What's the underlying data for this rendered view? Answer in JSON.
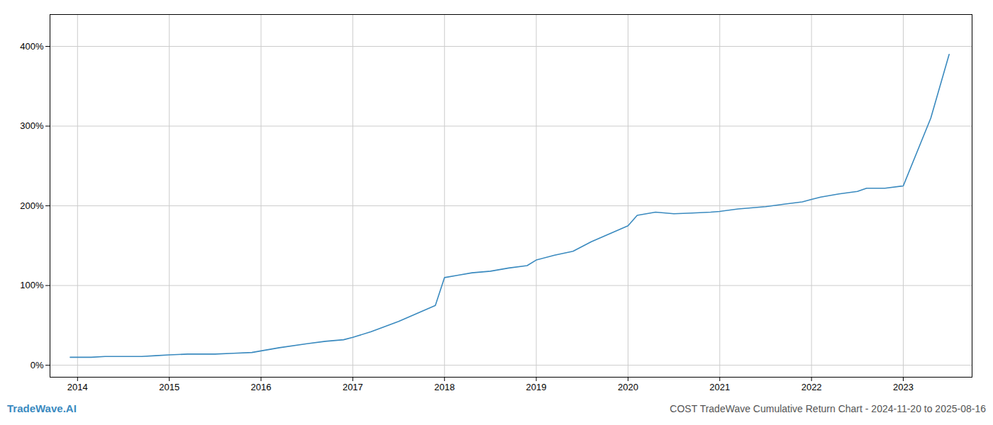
{
  "chart_data": {
    "type": "line",
    "title": "COST TradeWave Cumulative Return Chart - 2024-11-20 to 2025-08-16",
    "annotations": [
      "TradeWave.AI"
    ],
    "color": "#3a8abf",
    "grid": true,
    "x": [
      2013.92,
      2014.0,
      2014.15,
      2014.3,
      2014.5,
      2014.7,
      2014.85,
      2015.0,
      2015.2,
      2015.5,
      2015.7,
      2015.9,
      2016.0,
      2016.2,
      2016.5,
      2016.7,
      2016.9,
      2017.0,
      2017.2,
      2017.5,
      2017.7,
      2017.9,
      2018.0,
      2018.15,
      2018.3,
      2018.5,
      2018.7,
      2018.9,
      2019.0,
      2019.2,
      2019.4,
      2019.6,
      2019.8,
      2020.0,
      2020.1,
      2020.3,
      2020.5,
      2020.7,
      2020.9,
      2021.0,
      2021.2,
      2021.5,
      2021.7,
      2021.9,
      2022.0,
      2022.1,
      2022.3,
      2022.5,
      2022.6,
      2022.8,
      2023.0,
      2023.3,
      2023.5
    ],
    "values": [
      10,
      10,
      10,
      11,
      11,
      11,
      12,
      13,
      14,
      14,
      15,
      16,
      18,
      22,
      27,
      30,
      32,
      35,
      42,
      55,
      65,
      75,
      110,
      113,
      116,
      118,
      122,
      125,
      132,
      138,
      143,
      155,
      165,
      175,
      188,
      192,
      190,
      191,
      192,
      193,
      196,
      199,
      202,
      205,
      208,
      211,
      215,
      218,
      222,
      222,
      225,
      310,
      390
    ],
    "xlim": [
      2013.7,
      2023.75
    ],
    "xticks": [
      2014,
      2015,
      2016,
      2017,
      2018,
      2019,
      2020,
      2021,
      2022,
      2023
    ],
    "ylim": [
      -15,
      440
    ],
    "yticks": [
      {
        "value": 0,
        "label": "0%"
      },
      {
        "value": 100,
        "label": "100%"
      },
      {
        "value": 200,
        "label": "200%"
      },
      {
        "value": 300,
        "label": "300%"
      },
      {
        "value": 400,
        "label": "400%"
      }
    ]
  }
}
